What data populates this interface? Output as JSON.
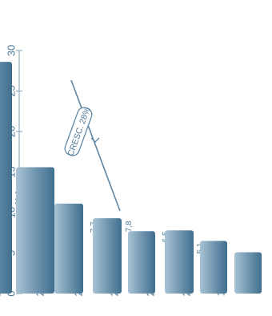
{
  "chart_data": {
    "type": "bar",
    "orientation": "horizontal",
    "categories": [
      "1999",
      "2000",
      "2001",
      "2002",
      "2003",
      "2004",
      "2005",
      "2006"
    ],
    "values": [
      5.1,
      6.5,
      7.8,
      7.7,
      9.3,
      11.1,
      15.6,
      28.6
    ],
    "value_labels": [
      "5,1",
      "6,5",
      "7,8",
      "7,7",
      "9,3",
      "11,1",
      "15,6",
      "28,6"
    ],
    "axis_ticks": [
      "0",
      "5",
      "10",
      "15",
      "20",
      "25",
      "30"
    ],
    "tick_values": [
      0,
      5,
      10,
      15,
      20,
      25,
      30
    ],
    "xlim": [
      0,
      30
    ],
    "annotation": "CRESC. 28%",
    "grid": false,
    "colors": {
      "bar_dark": "#3f6f8f",
      "bar_light": "#a9c3d4",
      "text": "#4f7a96",
      "axis": "#7f9fb4"
    }
  }
}
